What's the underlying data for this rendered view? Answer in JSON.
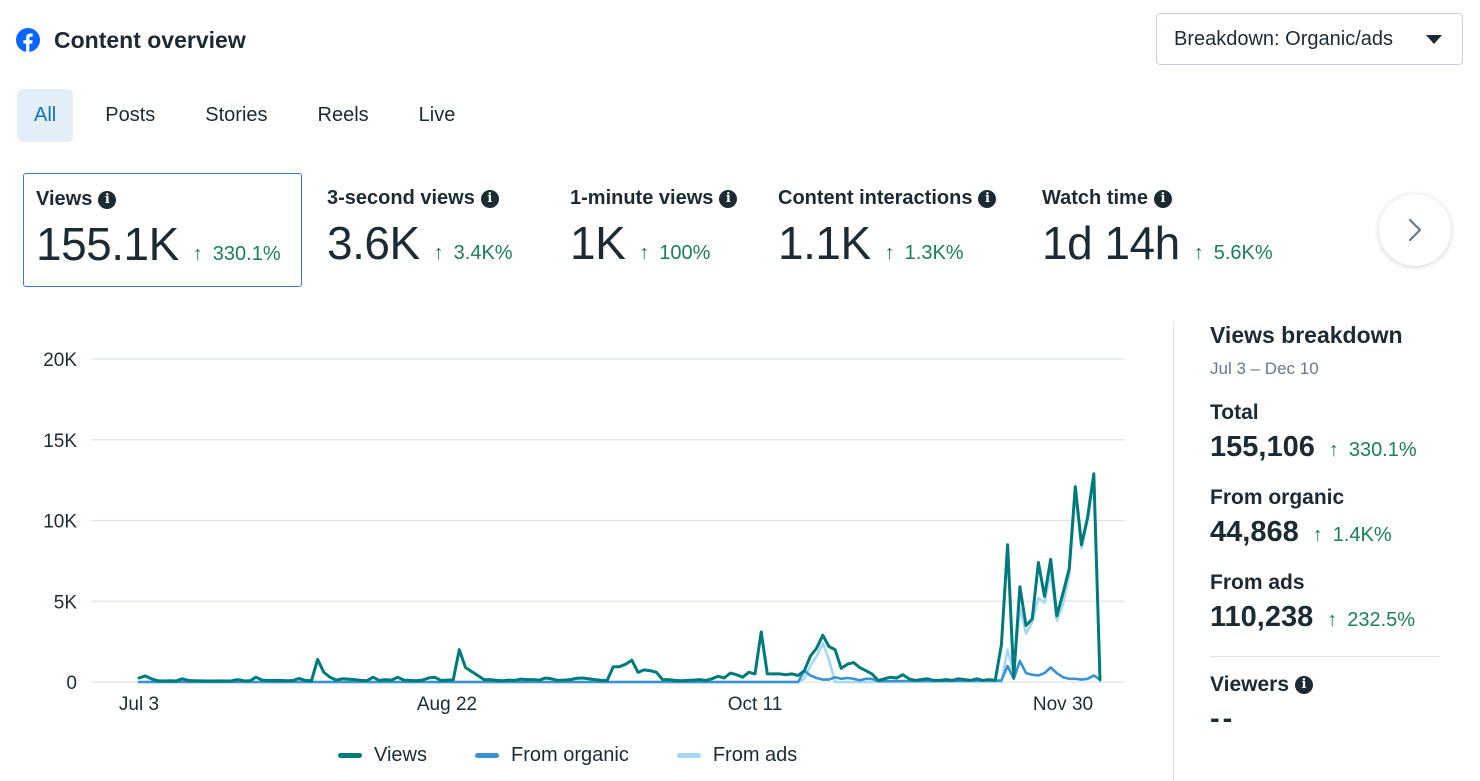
{
  "header": {
    "title": "Content overview"
  },
  "breakdown": {
    "label": "Breakdown: Organic/ads"
  },
  "tabs": [
    {
      "label": "All",
      "active": true
    },
    {
      "label": "Posts",
      "active": false
    },
    {
      "label": "Stories",
      "active": false
    },
    {
      "label": "Reels",
      "active": false
    },
    {
      "label": "Live",
      "active": false
    }
  ],
  "metrics": [
    {
      "label": "Views",
      "value": "155.1K",
      "change": "330.1%",
      "selected": true
    },
    {
      "label": "3-second views",
      "value": "3.6K",
      "change": "3.4K%",
      "selected": false
    },
    {
      "label": "1-minute views",
      "value": "1K",
      "change": "100%",
      "selected": false
    },
    {
      "label": "Content interactions",
      "value": "1.1K",
      "change": "1.3K%",
      "selected": false
    },
    {
      "label": "Watch time",
      "value": "1d 14h",
      "change": "5.6K%",
      "selected": false
    }
  ],
  "colors": {
    "views": "#007a7a",
    "organic": "#3a93d0",
    "ads": "#a6d8f3",
    "positive": "#1a7f5a",
    "grid": "#dfe3e7"
  },
  "chart_data": {
    "type": "line",
    "title": "",
    "xlabel": "",
    "ylabel": "",
    "x_ticks": [
      "Jul 3",
      "Aug 22",
      "Oct 11",
      "Nov 30"
    ],
    "x_tick_index": [
      0,
      50,
      100,
      150
    ],
    "y_ticks": [
      "0",
      "5K",
      "10K",
      "15K",
      "20K"
    ],
    "y_tick_values": [
      0,
      5000,
      10000,
      15000,
      20000
    ],
    "ylim": [
      0,
      20000
    ],
    "x_range": [
      0,
      160
    ],
    "series": [
      {
        "name": "Views",
        "key": "views",
        "points": [
          [
            0,
            250
          ],
          [
            1,
            380
          ],
          [
            2,
            200
          ],
          [
            3,
            80
          ],
          [
            4,
            60
          ],
          [
            5,
            80
          ],
          [
            6,
            60
          ],
          [
            7,
            200
          ],
          [
            8,
            90
          ],
          [
            9,
            80
          ],
          [
            10,
            70
          ],
          [
            11,
            60
          ],
          [
            12,
            60
          ],
          [
            13,
            70
          ],
          [
            14,
            60
          ],
          [
            15,
            70
          ],
          [
            16,
            150
          ],
          [
            17,
            80
          ],
          [
            18,
            70
          ],
          [
            19,
            300
          ],
          [
            20,
            120
          ],
          [
            21,
            90
          ],
          [
            22,
            100
          ],
          [
            23,
            90
          ],
          [
            24,
            80
          ],
          [
            25,
            90
          ],
          [
            26,
            220
          ],
          [
            27,
            100
          ],
          [
            28,
            80
          ],
          [
            29,
            1400
          ],
          [
            30,
            600
          ],
          [
            31,
            300
          ],
          [
            32,
            120
          ],
          [
            33,
            200
          ],
          [
            34,
            180
          ],
          [
            35,
            150
          ],
          [
            36,
            100
          ],
          [
            37,
            80
          ],
          [
            38,
            300
          ],
          [
            39,
            100
          ],
          [
            40,
            150
          ],
          [
            41,
            120
          ],
          [
            42,
            300
          ],
          [
            43,
            120
          ],
          [
            44,
            100
          ],
          [
            45,
            80
          ],
          [
            46,
            120
          ],
          [
            47,
            250
          ],
          [
            48,
            300
          ],
          [
            49,
            100
          ],
          [
            50,
            120
          ],
          [
            51,
            130
          ],
          [
            52,
            2000
          ],
          [
            53,
            900
          ],
          [
            54,
            650
          ],
          [
            55,
            400
          ],
          [
            56,
            150
          ],
          [
            57,
            150
          ],
          [
            58,
            100
          ],
          [
            59,
            80
          ],
          [
            60,
            120
          ],
          [
            61,
            100
          ],
          [
            62,
            180
          ],
          [
            63,
            150
          ],
          [
            64,
            150
          ],
          [
            65,
            120
          ],
          [
            66,
            250
          ],
          [
            67,
            200
          ],
          [
            68,
            100
          ],
          [
            69,
            120
          ],
          [
            70,
            150
          ],
          [
            71,
            220
          ],
          [
            72,
            250
          ],
          [
            73,
            200
          ],
          [
            74,
            150
          ],
          [
            75,
            100
          ],
          [
            76,
            100
          ],
          [
            77,
            950
          ],
          [
            78,
            950
          ],
          [
            79,
            1100
          ],
          [
            80,
            1350
          ],
          [
            81,
            600
          ],
          [
            82,
            750
          ],
          [
            83,
            700
          ],
          [
            84,
            600
          ],
          [
            85,
            150
          ],
          [
            86,
            150
          ],
          [
            87,
            100
          ],
          [
            88,
            80
          ],
          [
            89,
            100
          ],
          [
            90,
            120
          ],
          [
            91,
            150
          ],
          [
            92,
            100
          ],
          [
            93,
            200
          ],
          [
            94,
            350
          ],
          [
            95,
            250
          ],
          [
            96,
            550
          ],
          [
            97,
            450
          ],
          [
            98,
            300
          ],
          [
            99,
            600
          ],
          [
            100,
            500
          ],
          [
            101,
            3100
          ],
          [
            102,
            500
          ],
          [
            103,
            500
          ],
          [
            104,
            500
          ],
          [
            105,
            450
          ],
          [
            106,
            500
          ],
          [
            107,
            400
          ],
          [
            108,
            700
          ],
          [
            109,
            1600
          ],
          [
            110,
            2100
          ],
          [
            111,
            2900
          ],
          [
            112,
            2200
          ],
          [
            113,
            2000
          ],
          [
            114,
            850
          ],
          [
            115,
            1100
          ],
          [
            116,
            1200
          ],
          [
            117,
            900
          ],
          [
            118,
            700
          ],
          [
            119,
            500
          ],
          [
            120,
            100
          ],
          [
            121,
            200
          ],
          [
            122,
            300
          ],
          [
            123,
            250
          ],
          [
            124,
            450
          ],
          [
            125,
            200
          ],
          [
            126,
            100
          ],
          [
            127,
            150
          ],
          [
            128,
            200
          ],
          [
            129,
            100
          ],
          [
            130,
            100
          ],
          [
            131,
            150
          ],
          [
            132,
            100
          ],
          [
            133,
            200
          ],
          [
            134,
            150
          ],
          [
            135,
            100
          ],
          [
            136,
            200
          ],
          [
            137,
            100
          ],
          [
            138,
            150
          ],
          [
            139,
            100
          ],
          [
            140,
            2300
          ],
          [
            141,
            8500
          ],
          [
            142,
            300
          ],
          [
            143,
            5900
          ],
          [
            144,
            3500
          ],
          [
            145,
            3900
          ],
          [
            146,
            7400
          ],
          [
            147,
            5300
          ],
          [
            148,
            7600
          ],
          [
            149,
            4100
          ],
          [
            150,
            5500
          ],
          [
            151,
            7000
          ],
          [
            152,
            12100
          ],
          [
            153,
            8500
          ],
          [
            154,
            10200
          ],
          [
            155,
            12900
          ],
          [
            156,
            150
          ]
        ]
      },
      {
        "name": "From organic",
        "key": "organic",
        "points": [
          [
            0,
            0
          ],
          [
            100,
            0
          ],
          [
            107,
            0
          ],
          [
            108,
            700
          ],
          [
            109,
            400
          ],
          [
            110,
            250
          ],
          [
            111,
            150
          ],
          [
            112,
            150
          ],
          [
            113,
            300
          ],
          [
            114,
            200
          ],
          [
            115,
            250
          ],
          [
            116,
            200
          ],
          [
            117,
            100
          ],
          [
            118,
            200
          ],
          [
            119,
            200
          ],
          [
            120,
            50
          ],
          [
            140,
            100
          ],
          [
            141,
            1000
          ],
          [
            142,
            200
          ],
          [
            143,
            1300
          ],
          [
            144,
            550
          ],
          [
            145,
            450
          ],
          [
            146,
            400
          ],
          [
            147,
            550
          ],
          [
            148,
            900
          ],
          [
            149,
            550
          ],
          [
            150,
            300
          ],
          [
            151,
            200
          ],
          [
            152,
            200
          ],
          [
            153,
            150
          ],
          [
            154,
            200
          ],
          [
            155,
            400
          ],
          [
            156,
            150
          ]
        ]
      },
      {
        "name": "From ads",
        "key": "ads",
        "points": [
          [
            0,
            0
          ],
          [
            107,
            0
          ],
          [
            108,
            200
          ],
          [
            109,
            1000
          ],
          [
            110,
            1600
          ],
          [
            111,
            2400
          ],
          [
            112,
            1400
          ],
          [
            113,
            0
          ],
          [
            140,
            0
          ],
          [
            141,
            2000
          ],
          [
            142,
            600
          ],
          [
            143,
            4600
          ],
          [
            144,
            3000
          ],
          [
            145,
            3700
          ],
          [
            146,
            5200
          ],
          [
            147,
            4900
          ],
          [
            148,
            6800
          ],
          [
            149,
            3800
          ],
          [
            150,
            4800
          ],
          [
            151,
            6600
          ],
          [
            152,
            11800
          ],
          [
            153,
            8300
          ],
          [
            154,
            10000
          ],
          [
            155,
            12600
          ],
          [
            156,
            0
          ]
        ]
      }
    ],
    "legend": [
      "Views",
      "From organic",
      "From ads"
    ]
  },
  "side": {
    "title": "Views breakdown",
    "date_range": "Jul 3 – Dec 10",
    "rows": [
      {
        "label": "Total",
        "value": "155,106",
        "change": "330.1%"
      },
      {
        "label": "From organic",
        "value": "44,868",
        "change": "1.4K%"
      },
      {
        "label": "From ads",
        "value": "110,238",
        "change": "232.5%"
      }
    ],
    "viewers_label": "Viewers",
    "viewers_value": "--"
  }
}
